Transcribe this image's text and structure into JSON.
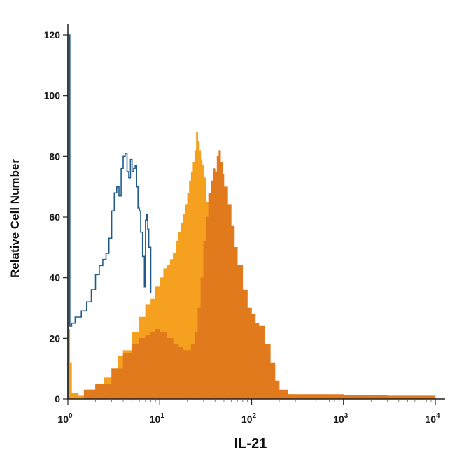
{
  "chart_data": {
    "type": "area",
    "title": "",
    "xlabel": "IL-21",
    "ylabel": "Relative Cell Number",
    "xscale": "log",
    "xlim": [
      1,
      10000
    ],
    "ylim": [
      0,
      120
    ],
    "grid": false,
    "legend": "none",
    "yticks": [
      "0",
      "20",
      "40",
      "60",
      "80",
      "100",
      "120"
    ],
    "xticks": [
      {
        "base": "10",
        "exp": "0"
      },
      {
        "base": "10",
        "exp": "1"
      },
      {
        "base": "10",
        "exp": "2"
      },
      {
        "base": "10",
        "exp": "3"
      },
      {
        "base": "10",
        "exp": "4"
      }
    ],
    "series": [
      {
        "style": "outline",
        "color": "#1f5c8c",
        "x": [
          1.0,
          1.04,
          1.05,
          1.1,
          1.2,
          1.4,
          1.6,
          1.8,
          2.0,
          2.2,
          2.4,
          2.6,
          2.8,
          3.0,
          3.2,
          3.4,
          3.6,
          3.8,
          4.0,
          4.2,
          4.4,
          4.6,
          4.8,
          5.0,
          5.2,
          5.4,
          5.6,
          5.8,
          6.0,
          6.2,
          6.5,
          6.8,
          7.0,
          7.2,
          7.4,
          7.6,
          8.0
        ],
        "y": [
          120,
          120,
          24,
          25,
          27,
          29,
          32,
          36,
          41,
          44,
          46,
          48,
          53,
          62,
          68,
          70,
          67,
          76,
          80,
          81,
          75,
          73,
          79,
          75,
          76,
          77,
          70,
          63,
          62,
          55,
          47,
          37,
          59,
          61,
          56,
          50,
          35
        ]
      },
      {
        "style": "filled",
        "color": "#f5a01e",
        "x": [
          1.0,
          1.05,
          1.1,
          1.3,
          1.6,
          2.0,
          2.5,
          3.0,
          3.5,
          4.0,
          5.0,
          6.0,
          7.0,
          8.0,
          9.0,
          10.0,
          11.0,
          12.0,
          13.0,
          14.0,
          15.0,
          16.0,
          17.0,
          18.0,
          19.0,
          20.0,
          21.0,
          22.0,
          23.0,
          24.0,
          25.0,
          26.0,
          27.0,
          28.0,
          29.0,
          30.0,
          32.0,
          34.0,
          36.0,
          38.0,
          40.0,
          45.0,
          50.0,
          60.0,
          70.0,
          80.0,
          100.0,
          130.0,
          160.0,
          200.0,
          300.0,
          1000.0,
          10000.0
        ],
        "y": [
          23,
          12,
          2,
          1,
          3,
          5,
          7,
          10,
          14,
          16,
          22,
          27,
          31,
          33,
          37,
          40,
          43,
          44,
          46,
          48,
          52,
          55,
          58,
          61,
          64,
          68,
          72,
          75,
          78,
          82,
          88,
          85,
          82,
          79,
          77,
          73,
          65,
          54,
          45,
          38,
          35,
          31,
          28,
          25,
          20,
          16,
          10,
          6,
          3,
          1.5,
          1,
          0.5,
          0
        ]
      },
      {
        "style": "filled",
        "color": "#e07a1c",
        "x": [
          1.0,
          1.5,
          2.0,
          3.0,
          4.0,
          5.0,
          6.0,
          7.0,
          8.0,
          9.0,
          10.0,
          12.0,
          14.0,
          16.0,
          18.0,
          20.0,
          22.0,
          24.0,
          26.0,
          28.0,
          30.0,
          32.0,
          34.0,
          36.0,
          38.0,
          40.0,
          42.0,
          44.0,
          46.0,
          48.0,
          50.0,
          55.0,
          60.0,
          65.0,
          70.0,
          80.0,
          90.0,
          100.0,
          110.0,
          120.0,
          140.0,
          160.0,
          180.0,
          200.0,
          250.0,
          400.0,
          1000.0,
          3000.0,
          10000.0
        ],
        "y": [
          0,
          3,
          5,
          10,
          15,
          18,
          20,
          21,
          22,
          23,
          22,
          20,
          18,
          17,
          16,
          16,
          18,
          22,
          30,
          40,
          52,
          60,
          68,
          72,
          76,
          75,
          80,
          82,
          78,
          74,
          70,
          64,
          57,
          50,
          44,
          36,
          30,
          28,
          25,
          24,
          18,
          12,
          6,
          3,
          1.5,
          1.5,
          1.2,
          1,
          0.5
        ]
      }
    ]
  }
}
